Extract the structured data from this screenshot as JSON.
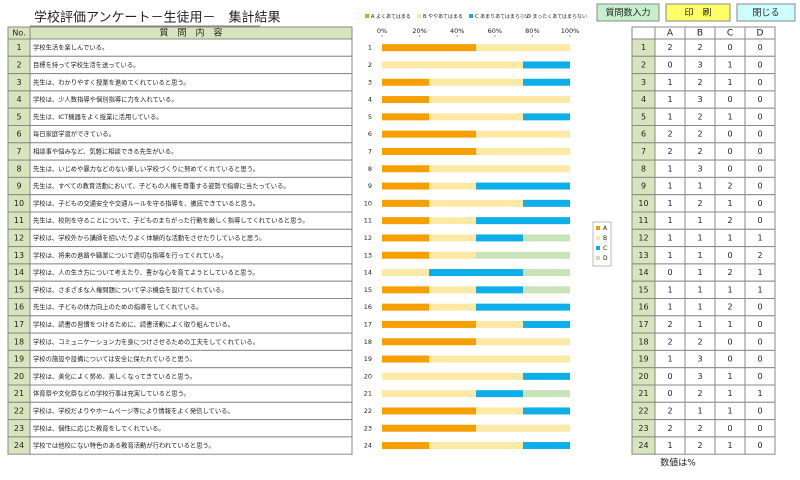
{
  "header": {
    "title": "学校評価アンケート－生徒用－　集計結果",
    "buttons": [
      "質問数入力",
      "印　刷",
      "閉じる"
    ]
  },
  "question_table": {
    "columns": [
      "No.",
      "質　問　内　容"
    ],
    "rows": [
      [
        1,
        "学校生活を楽しんでいる。"
      ],
      [
        2,
        "目標を持って学校生活を送っている。"
      ],
      [
        3,
        "先生は、わかりやすく授業を進めてくれていると思う。"
      ],
      [
        4,
        "学校は、少人数指導や個別指導に力を入れている。"
      ],
      [
        5,
        "先生は、ICT機器をよく授業に活用している。"
      ],
      [
        6,
        "毎日家庭学習ができている。"
      ],
      [
        7,
        "相談事や悩みなど、気軽に相談できる先生がいる。"
      ],
      [
        8,
        "先生は、いじめや暴力などのない楽しい学校づくりに努めてくれていると思う。"
      ],
      [
        9,
        "先生は、すべての教育活動において、子どもの人権を尊重する姿勢で指導に当たっている。"
      ],
      [
        10,
        "学校は、子どもの交通安全や交通ルールを守る指導を、徹底できていると思う。"
      ],
      [
        11,
        "先生は、校則を守ることについて、子どものまちがった行動を厳しく指導してくれていると思う。"
      ],
      [
        12,
        "学校は、学校外から講師を招いたりよく体験的な活動をさせたりしていると思う。"
      ],
      [
        13,
        "学校は、将来の進路や職業について適切な指導を行ってくれている。"
      ],
      [
        14,
        "学校は、人の生き方について考えたり、豊かな心を育てようとしていると思う。"
      ],
      [
        15,
        "学校は、さまざまな人権問題について学ぶ機会を設けてくれている。"
      ],
      [
        16,
        "先生は、子どもの体力向上のための指導をしてくれている。"
      ],
      [
        17,
        "学校は、読書の習慣をつけるために、読書活動によく取り組んでいる。"
      ],
      [
        18,
        "学校は、コミュニケーション力を身につけさせるための工夫をしてくれている。"
      ],
      [
        19,
        "学校の施設や設備については安全に保たれていると思う。"
      ],
      [
        20,
        "学校は、美化によく努め、美しくなってきていると思う。"
      ],
      [
        21,
        "体育祭や文化祭などの学校行事は充実していると思う。"
      ],
      [
        22,
        "学校は、学校だよりやホームページ等により情報をよく発信している。"
      ],
      [
        23,
        "学校は、個性に応じた教育をしてくれている。"
      ],
      [
        24,
        "学校では他校にない特色のある教育活動が行われていると思う。"
      ]
    ]
  },
  "chart_data": {
    "type": "bar",
    "orientation": "horizontal",
    "stacked": true,
    "categories": [
      "1",
      "2",
      "3",
      "4",
      "5",
      "6",
      "7",
      "8",
      "9",
      "10",
      "11",
      "12",
      "13",
      "14",
      "15",
      "16",
      "17",
      "18",
      "19",
      "20",
      "21",
      "22",
      "23",
      "24"
    ],
    "series": [
      {
        "name": "A よくあてはまる",
        "color": "#f5a000",
        "values": [
          50,
          0,
          25,
          25,
          25,
          50,
          50,
          25,
          25,
          25,
          25,
          25,
          25,
          0,
          25,
          25,
          50,
          50,
          25,
          0,
          0,
          50,
          50,
          25
        ]
      },
      {
        "name": "B ややあてはまる",
        "color": "#fde9a6",
        "values": [
          50,
          75,
          50,
          75,
          50,
          50,
          50,
          75,
          25,
          50,
          25,
          25,
          25,
          25,
          25,
          25,
          25,
          50,
          75,
          75,
          50,
          25,
          50,
          50
        ]
      },
      {
        "name": "C あまりあてはまらない",
        "color": "#0eaee8",
        "values": [
          0,
          25,
          25,
          0,
          25,
          0,
          0,
          0,
          50,
          25,
          50,
          25,
          0,
          50,
          25,
          50,
          25,
          0,
          0,
          25,
          25,
          25,
          0,
          25
        ]
      },
      {
        "name": "D まったくあてはまらない",
        "color": "#c8e3b8",
        "values": [
          0,
          0,
          0,
          0,
          0,
          0,
          0,
          0,
          0,
          0,
          0,
          25,
          50,
          25,
          25,
          0,
          0,
          0,
          0,
          0,
          25,
          0,
          0,
          0
        ]
      }
    ],
    "xlim": [
      0,
      100
    ],
    "xticks": [
      {
        "value": 0,
        "label": "0%"
      },
      {
        "value": 20,
        "label": "20%"
      },
      {
        "value": 40,
        "label": "40%"
      },
      {
        "value": 60,
        "label": "60%"
      },
      {
        "value": 80,
        "label": "80%"
      },
      {
        "value": 100,
        "label": "100%"
      }
    ],
    "side_legend": [
      "A",
      "B",
      "C",
      "D"
    ]
  },
  "count_table": {
    "columns": [
      "A",
      "B",
      "C",
      "D"
    ],
    "rows": [
      [
        1,
        2,
        2,
        0,
        0
      ],
      [
        2,
        0,
        3,
        1,
        0
      ],
      [
        3,
        1,
        2,
        1,
        0
      ],
      [
        4,
        1,
        3,
        0,
        0
      ],
      [
        5,
        1,
        2,
        1,
        0
      ],
      [
        6,
        2,
        2,
        0,
        0
      ],
      [
        7,
        2,
        2,
        0,
        0
      ],
      [
        8,
        1,
        3,
        0,
        0
      ],
      [
        9,
        1,
        1,
        2,
        0
      ],
      [
        10,
        1,
        2,
        1,
        0
      ],
      [
        11,
        1,
        1,
        2,
        0
      ],
      [
        12,
        1,
        1,
        1,
        1
      ],
      [
        13,
        1,
        1,
        0,
        2
      ],
      [
        14,
        0,
        1,
        2,
        1
      ],
      [
        15,
        1,
        1,
        1,
        1
      ],
      [
        16,
        1,
        1,
        2,
        0
      ],
      [
        17,
        2,
        1,
        1,
        0
      ],
      [
        18,
        2,
        2,
        0,
        0
      ],
      [
        19,
        1,
        3,
        0,
        0
      ],
      [
        20,
        0,
        3,
        1,
        0
      ],
      [
        21,
        0,
        2,
        1,
        1
      ],
      [
        22,
        2,
        1,
        1,
        0
      ],
      [
        23,
        2,
        2,
        0,
        0
      ],
      [
        24,
        1,
        2,
        1,
        0
      ]
    ]
  },
  "note": "数値は%"
}
